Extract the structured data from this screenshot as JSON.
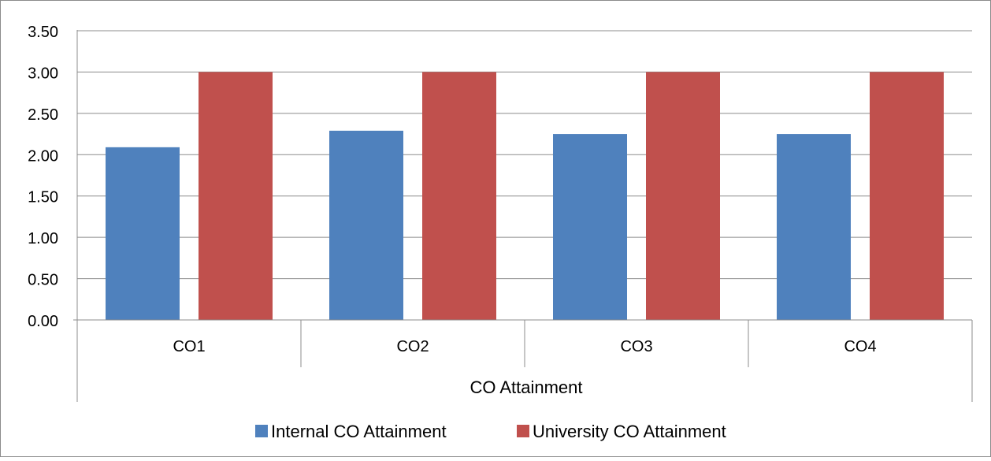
{
  "chart_data": {
    "type": "bar",
    "title": "",
    "xlabel": "CO Attainment",
    "ylabel": "",
    "ylim": [
      0,
      3.5
    ],
    "yticks": [
      "0.00",
      "0.50",
      "1.00",
      "1.50",
      "2.00",
      "2.50",
      "3.00",
      "3.50"
    ],
    "categories": [
      "CO1",
      "CO2",
      "CO3",
      "CO4"
    ],
    "series": [
      {
        "name": "Internal CO Attainment",
        "color": "#4F81BD",
        "values": [
          2.09,
          2.29,
          2.25,
          2.25
        ]
      },
      {
        "name": "University CO Attainment",
        "color": "#C0504D",
        "values": [
          3.0,
          3.0,
          3.0,
          3.0
        ]
      }
    ],
    "grid": true,
    "legend": "bottom"
  }
}
